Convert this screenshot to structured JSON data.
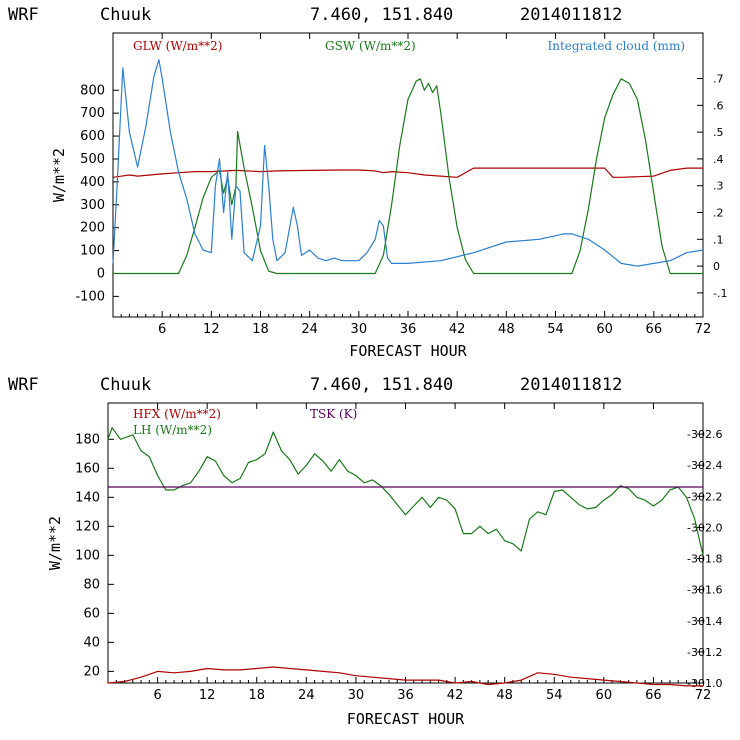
{
  "colors": {
    "red": "#b00000",
    "green": "#1a7a1a",
    "blue": "#2a7fd0",
    "purple": "#5a005a",
    "axis": "#000000"
  },
  "chart_data": [
    {
      "type": "line",
      "header": {
        "model": "WRF",
        "station": "Chuuk",
        "coords": "7.460, 151.840",
        "init": "2014011812"
      },
      "xlabel": "FORECAST HOUR",
      "ylabel": "W/m**2",
      "xlim": [
        0,
        72
      ],
      "ylim": [
        -190,
        1050
      ],
      "yticks": [
        -100,
        0,
        100,
        200,
        300,
        400,
        500,
        600,
        700,
        800
      ],
      "ytick_labels": [
        "-100",
        "0",
        "100",
        "200",
        "300",
        "400",
        "500",
        "600",
        "700",
        "800"
      ],
      "y2lim": [
        -0.19,
        0.87
      ],
      "y2ticks": [
        -0.1,
        0,
        0.1,
        0.2,
        0.3,
        0.4,
        0.5,
        0.6,
        0.7
      ],
      "y2tick_labels": [
        "-.1",
        "0",
        ".1",
        ".2",
        ".3",
        ".4",
        ".5",
        ".6",
        ".7"
      ],
      "xticks": [
        6,
        12,
        18,
        24,
        30,
        36,
        42,
        48,
        54,
        60,
        66,
        72
      ],
      "xtick_labels": [
        "6",
        "12",
        "18",
        "24",
        "30",
        "36",
        "42",
        "48",
        "54",
        "60",
        "66",
        "72"
      ],
      "series": [
        {
          "name": "GLW (W/m**2)",
          "color": "red",
          "axis": "left",
          "x": [
            0,
            2,
            3,
            6,
            8,
            10,
            12,
            15,
            18,
            20,
            24,
            28,
            30,
            32,
            33,
            34,
            36,
            38,
            40,
            42,
            44,
            48,
            54,
            60,
            61,
            62,
            66,
            68,
            70,
            72
          ],
          "y": [
            420,
            430,
            425,
            435,
            440,
            445,
            445,
            450,
            445,
            448,
            450,
            452,
            452,
            448,
            440,
            445,
            440,
            430,
            425,
            420,
            460,
            460,
            460,
            460,
            420,
            420,
            425,
            450,
            460,
            460
          ]
        },
        {
          "name": "GSW (W/m**2)",
          "color": "green",
          "axis": "left",
          "x": [
            0,
            8,
            9,
            10,
            11,
            12,
            13,
            13.5,
            14,
            14.5,
            15,
            15.2,
            16,
            17,
            18,
            19,
            20,
            32,
            33,
            34,
            35,
            36,
            37,
            37.5,
            38,
            38.5,
            39,
            39.5,
            40,
            41,
            42,
            43,
            44,
            56,
            57,
            58,
            59,
            60,
            61,
            62,
            63,
            64,
            65,
            66,
            67,
            68,
            72
          ],
          "y": [
            0,
            0,
            80,
            200,
            330,
            420,
            450,
            350,
            420,
            300,
            380,
            620,
            460,
            290,
            100,
            10,
            0,
            0,
            80,
            300,
            560,
            760,
            840,
            850,
            800,
            830,
            790,
            820,
            700,
            420,
            200,
            60,
            0,
            0,
            100,
            280,
            500,
            680,
            780,
            850,
            830,
            760,
            580,
            350,
            120,
            0,
            0
          ]
        },
        {
          "name": "Integrated cloud (mm)",
          "color": "blue",
          "axis": "right",
          "x": [
            0,
            0.5,
            1.2,
            2,
            3,
            4,
            5,
            5.6,
            6,
            7,
            8,
            9,
            10,
            11,
            12,
            12.5,
            13,
            13.5,
            14,
            14.5,
            15,
            15.5,
            16,
            17,
            18,
            18.5,
            19,
            19.5,
            20,
            21,
            22,
            22.5,
            23,
            24,
            25,
            26,
            27,
            28,
            30,
            31,
            32,
            32.5,
            33,
            33.5,
            34,
            35,
            36,
            40,
            44,
            48,
            52,
            55,
            56,
            58,
            60,
            62,
            64,
            66,
            68,
            70,
            72
          ],
          "y": [
            0.01,
            0.3,
            0.74,
            0.5,
            0.37,
            0.52,
            0.71,
            0.77,
            0.7,
            0.5,
            0.35,
            0.25,
            0.12,
            0.06,
            0.05,
            0.3,
            0.4,
            0.2,
            0.35,
            0.1,
            0.3,
            0.28,
            0.05,
            0.02,
            0.15,
            0.45,
            0.3,
            0.1,
            0.02,
            0.05,
            0.22,
            0.15,
            0.04,
            0.06,
            0.03,
            0.02,
            0.03,
            0.02,
            0.02,
            0.05,
            0.1,
            0.17,
            0.15,
            0.03,
            0.01,
            0.01,
            0.01,
            0.02,
            0.05,
            0.09,
            0.1,
            0.12,
            0.12,
            0.1,
            0.06,
            0.01,
            0.0,
            0.01,
            0.02,
            0.05,
            0.06
          ]
        }
      ]
    },
    {
      "type": "line",
      "header": {
        "model": "WRF",
        "station": "Chuuk",
        "coords": "7.460, 151.840",
        "init": "2014011812"
      },
      "xlabel": "FORECAST HOUR",
      "ylabel": "W/m**2",
      "xlim": [
        0,
        72
      ],
      "ylim": [
        12,
        205
      ],
      "yticks": [
        20,
        40,
        60,
        80,
        100,
        120,
        140,
        160,
        180
      ],
      "ytick_labels": [
        "20",
        "40",
        "60",
        "80",
        "100",
        "120",
        "140",
        "160",
        "180"
      ],
      "y2lim": [
        301.0,
        302.8
      ],
      "y2ticks": [
        301.0,
        301.2,
        301.4,
        301.6,
        301.8,
        302.0,
        302.2,
        302.4,
        302.6
      ],
      "y2tick_labels": [
        "301.0",
        "301.2",
        "301.4",
        "301.6",
        "301.8",
        "302.0",
        "302.2",
        "302.4",
        "302.6"
      ],
      "xticks": [
        6,
        12,
        18,
        24,
        30,
        36,
        42,
        48,
        54,
        60,
        66,
        72
      ],
      "xtick_labels": [
        "6",
        "12",
        "18",
        "24",
        "30",
        "36",
        "42",
        "48",
        "54",
        "60",
        "66",
        "72"
      ],
      "series": [
        {
          "name": "HFX (W/m**2)",
          "color": "red",
          "axis": "left",
          "x": [
            0,
            2,
            4,
            6,
            8,
            10,
            12,
            14,
            16,
            18,
            20,
            22,
            24,
            26,
            28,
            30,
            32,
            34,
            36,
            38,
            40,
            42,
            44,
            46,
            48,
            50,
            52,
            54,
            56,
            58,
            60,
            62,
            64,
            66,
            68,
            70,
            72
          ],
          "y": [
            12,
            13,
            16,
            20,
            19,
            20,
            22,
            21,
            21,
            22,
            23,
            22,
            21,
            20,
            19,
            17,
            16,
            15,
            14,
            14,
            14,
            12,
            13,
            11,
            12,
            14,
            19,
            18,
            16,
            15,
            14,
            13,
            12,
            11,
            11,
            10,
            10
          ]
        },
        {
          "name": "LH (W/m**2)",
          "color": "green",
          "axis": "left",
          "x": [
            0,
            0.5,
            1.5,
            3,
            4,
            5,
            6,
            7,
            8,
            9,
            10,
            11,
            12,
            13,
            14,
            15,
            16,
            17,
            18,
            19,
            20,
            21,
            22,
            23,
            24,
            25,
            26,
            27,
            28,
            29,
            30,
            31,
            32,
            33,
            34,
            35,
            36,
            37,
            38,
            39,
            40,
            41,
            42,
            43,
            44,
            45,
            46,
            47,
            48,
            49,
            50,
            51,
            52,
            53,
            54,
            55,
            56,
            57,
            58,
            59,
            60,
            61,
            62,
            63,
            64,
            65,
            66,
            67,
            68,
            69,
            70,
            71,
            72
          ],
          "y": [
            180,
            188,
            180,
            183,
            172,
            168,
            155,
            145,
            145,
            148,
            150,
            158,
            168,
            165,
            155,
            150,
            153,
            164,
            166,
            170,
            185,
            172,
            166,
            156,
            162,
            170,
            165,
            158,
            166,
            158,
            155,
            150,
            152,
            148,
            142,
            135,
            128,
            134,
            140,
            133,
            140,
            138,
            132,
            115,
            115,
            120,
            115,
            118,
            110,
            108,
            103,
            125,
            130,
            128,
            144,
            145,
            140,
            135,
            132,
            133,
            138,
            142,
            148,
            146,
            140,
            138,
            134,
            138,
            145,
            147,
            140,
            125,
            100
          ]
        },
        {
          "name": "TSK (K)",
          "color": "purple",
          "axis": "right",
          "x": [
            0,
            72
          ],
          "y": [
            302.26,
            302.26
          ]
        }
      ]
    }
  ]
}
